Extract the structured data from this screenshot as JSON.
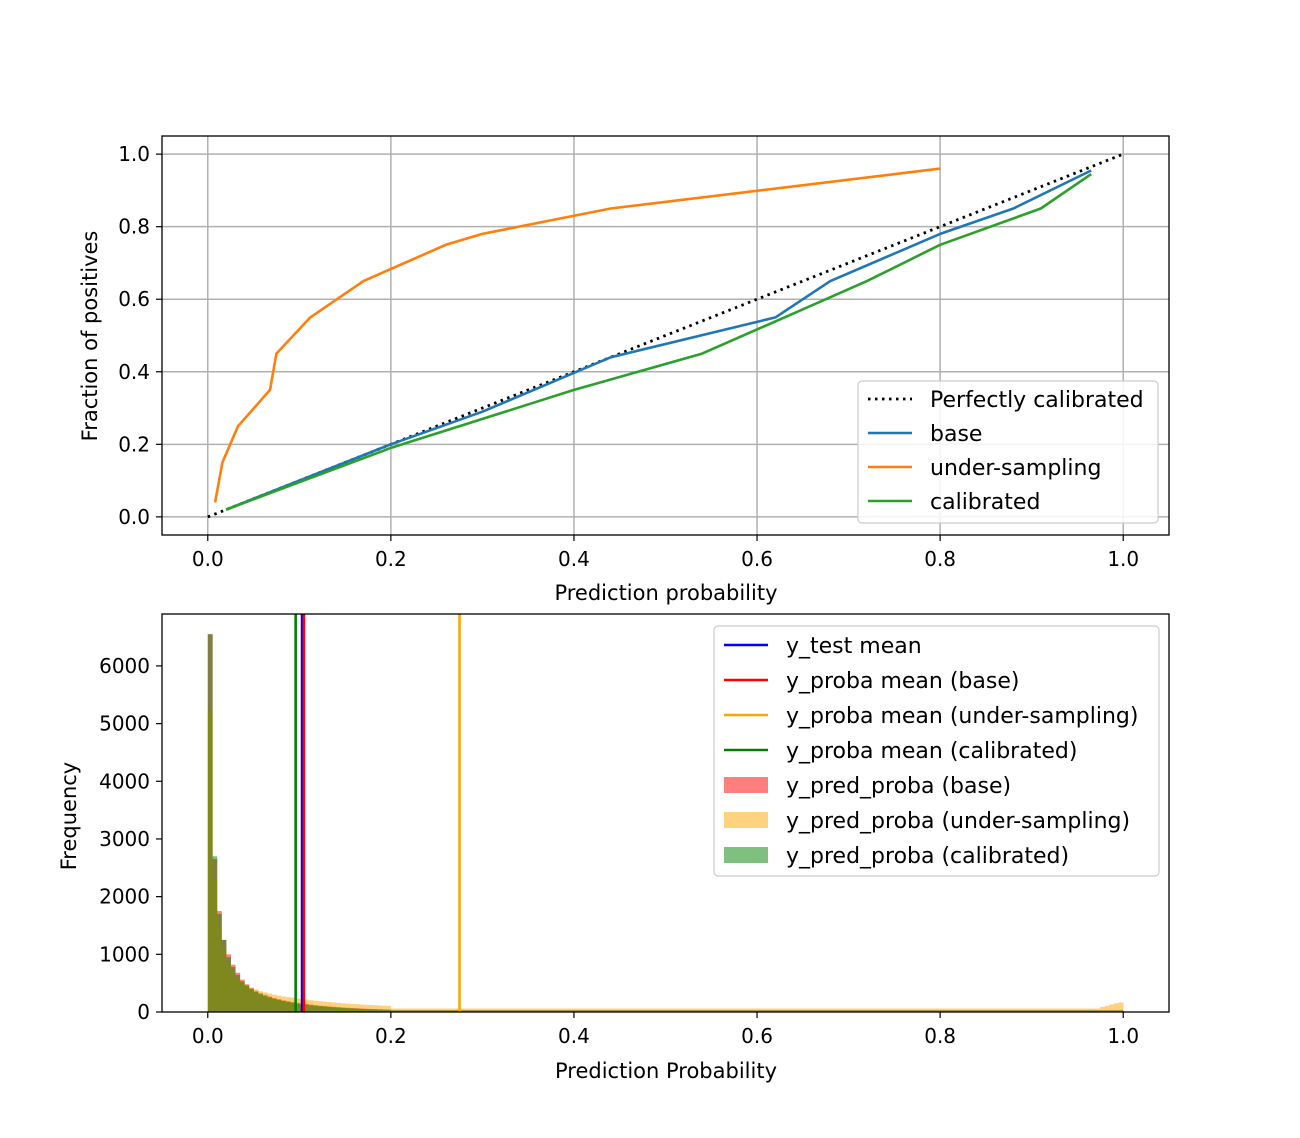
{
  "chart_data": [
    {
      "type": "line",
      "title": "",
      "xlabel": "Prediction probability",
      "ylabel": "Fraction of positives",
      "xlim": [
        -0.05,
        1.05
      ],
      "ylim": [
        -0.05,
        1.05
      ],
      "xticks": [
        0.0,
        0.2,
        0.4,
        0.6,
        0.8,
        1.0
      ],
      "yticks": [
        0.0,
        0.2,
        0.4,
        0.6,
        0.8,
        1.0
      ],
      "xtick_labels": [
        "0.0",
        "0.2",
        "0.4",
        "0.6",
        "0.8",
        "1.0"
      ],
      "ytick_labels": [
        "0.0",
        "0.2",
        "0.4",
        "0.6",
        "0.8",
        "1.0"
      ],
      "grid": true,
      "legend_position": "lower-right",
      "series": [
        {
          "name": "Perfectly calibrated",
          "color": "#000000",
          "style": "dotted",
          "x": [
            0.0,
            1.0
          ],
          "y": [
            0.0,
            1.0
          ]
        },
        {
          "name": "base",
          "color": "#1f77b4",
          "style": "solid",
          "x": [
            0.02,
            0.1,
            0.2,
            0.3,
            0.44,
            0.62,
            0.68,
            0.8,
            0.88,
            0.965
          ],
          "y": [
            0.02,
            0.1,
            0.2,
            0.29,
            0.44,
            0.55,
            0.65,
            0.78,
            0.85,
            0.955
          ]
        },
        {
          "name": "under-sampling",
          "color": "#ff7f0e",
          "style": "solid",
          "x": [
            0.008,
            0.016,
            0.033,
            0.068,
            0.075,
            0.112,
            0.17,
            0.26,
            0.3,
            0.44,
            0.8
          ],
          "y": [
            0.04,
            0.15,
            0.25,
            0.35,
            0.45,
            0.55,
            0.65,
            0.75,
            0.78,
            0.85,
            0.96
          ]
        },
        {
          "name": "calibrated",
          "color": "#2ca02c",
          "style": "solid",
          "x": [
            0.02,
            0.2,
            0.4,
            0.54,
            0.63,
            0.72,
            0.8,
            0.91,
            0.965
          ],
          "y": [
            0.02,
            0.19,
            0.35,
            0.45,
            0.55,
            0.65,
            0.75,
            0.85,
            0.945
          ]
        }
      ]
    },
    {
      "type": "bar",
      "title": "",
      "xlabel": "Prediction Probability",
      "ylabel": "Frequency",
      "xlim": [
        -0.05,
        1.05
      ],
      "ylim": [
        0,
        6900
      ],
      "xticks": [
        0.0,
        0.2,
        0.4,
        0.6,
        0.8,
        1.0
      ],
      "yticks": [
        0,
        1000,
        2000,
        3000,
        4000,
        5000,
        6000
      ],
      "xtick_labels": [
        "0.0",
        "0.2",
        "0.4",
        "0.6",
        "0.8",
        "1.0"
      ],
      "ytick_labels": [
        "0",
        "1000",
        "2000",
        "3000",
        "4000",
        "5000",
        "6000"
      ],
      "grid": false,
      "legend_position": "upper-right",
      "bins": 200,
      "bin_range": [
        0.0,
        1.0
      ],
      "vlines": [
        {
          "name": "y_test mean",
          "color": "#0000ff",
          "x": 0.103
        },
        {
          "name": "y_proba mean (base)",
          "color": "#ff0000",
          "x": 0.105
        },
        {
          "name": "y_proba mean (under-sampling)",
          "color": "#ffa500",
          "x": 0.275
        },
        {
          "name": "y_proba mean (calibrated)",
          "color": "#008000",
          "x": 0.096
        }
      ],
      "series": [
        {
          "name": "y_pred_proba (base)",
          "color": "#ff0000",
          "opacity": 0.5,
          "head_values": [
            6550,
            2650,
            1750,
            1250,
            1000,
            820,
            680,
            560,
            480,
            420,
            370,
            330,
            300,
            270,
            245,
            225,
            205,
            190,
            175,
            160,
            150,
            140,
            130,
            120,
            112,
            105,
            98,
            92,
            86,
            80,
            75,
            70,
            66,
            62,
            58,
            55,
            52,
            49,
            46,
            43
          ],
          "tail_value": 30
        },
        {
          "name": "y_pred_proba (under-sampling)",
          "color": "#ffa500",
          "opacity": 0.5,
          "head_values": [
            5200,
            2300,
            1500,
            1100,
            850,
            700,
            600,
            520,
            460,
            420,
            390,
            360,
            340,
            320,
            300,
            285,
            270,
            258,
            246,
            235,
            225,
            215,
            205,
            196,
            188,
            180,
            172,
            165,
            158,
            152,
            146,
            140,
            135,
            130,
            126,
            122,
            118,
            114,
            110,
            106
          ],
          "tail_value": 60,
          "end_values": [
            90,
            110,
            130,
            150,
            165
          ]
        },
        {
          "name": "y_pred_proba (calibrated)",
          "color": "#008000",
          "opacity": 0.5,
          "head_values": [
            6550,
            2700,
            1700,
            1250,
            950,
            780,
            640,
            530,
            460,
            400,
            350,
            310,
            280,
            255,
            230,
            210,
            190,
            175,
            160,
            148,
            138,
            128,
            118,
            110,
            102,
            95,
            88,
            82,
            77,
            72,
            67,
            63,
            59,
            55,
            52,
            49,
            46,
            43,
            40,
            38
          ],
          "tail_value": 28
        }
      ]
    }
  ]
}
